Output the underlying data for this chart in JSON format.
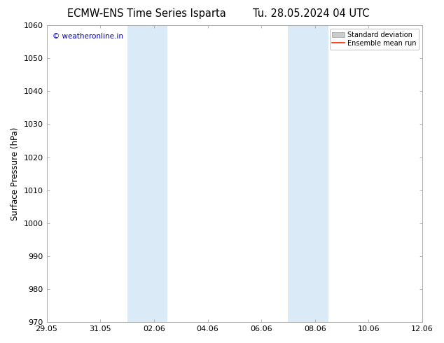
{
  "title": "ECMW-ENS Time Series Isparta",
  "title2": "Tu. 28.05.2024 04 UTC",
  "ylabel": "Surface Pressure (hPa)",
  "ylim": [
    970,
    1060
  ],
  "yticks": [
    970,
    980,
    990,
    1000,
    1010,
    1020,
    1030,
    1040,
    1050,
    1060
  ],
  "xtick_labels": [
    "29.05",
    "31.05",
    "02.06",
    "04.06",
    "06.06",
    "08.06",
    "10.06",
    "12.06"
  ],
  "xtick_positions_days": [
    0,
    2,
    4,
    6,
    8,
    10,
    12,
    14
  ],
  "xlim": [
    0,
    14
  ],
  "shaded_regions": [
    {
      "start_days": 3.0,
      "end_days": 4.5
    },
    {
      "start_days": 9.0,
      "end_days": 10.5
    }
  ],
  "shaded_color": "#daeaf7",
  "watermark_text": "© weatheronline.in",
  "watermark_color": "#0000cc",
  "bg_color": "#ffffff",
  "spine_color": "#aaaaaa",
  "legend_std_color": "#cccccc",
  "legend_std_edge": "#999999",
  "legend_mean_color": "#ff2200",
  "title_fontsize": 10.5,
  "ylabel_fontsize": 8.5,
  "tick_fontsize": 8,
  "watermark_fontsize": 7.5,
  "legend_fontsize": 7
}
